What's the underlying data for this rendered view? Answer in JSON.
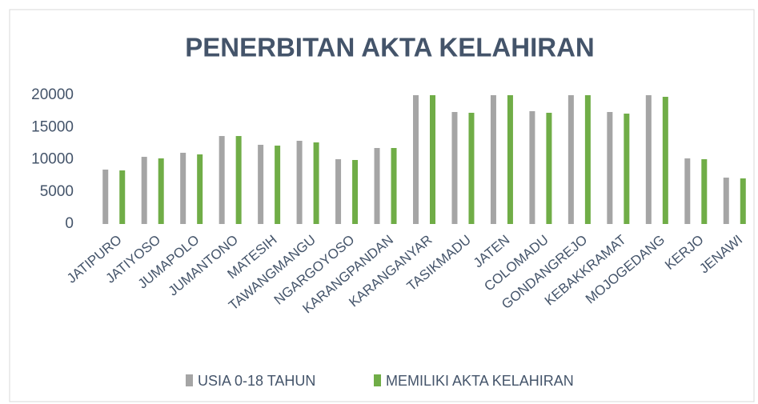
{
  "chart_data": {
    "type": "bar",
    "title": "PENERBITAN AKTA KELAHIRAN",
    "categories": [
      "JATIPURO",
      "JATIYOSO",
      "JUMAPOLO",
      "JUMANTONO",
      "MATESIH",
      "TAWANGMANGU",
      "NGARGOYOSO",
      "KARANGPANDAN",
      "KARANGANYAR",
      "TASIKMADU",
      "JATEN",
      "COLOMADU",
      "GONDANGREJO",
      "KEBAKKRAMAT",
      "MOJOGEDANG",
      "KERJO",
      "JENAWI"
    ],
    "series": [
      {
        "name": "USIA 0-18 TAHUN",
        "color": "#a5a5a5",
        "values": [
          8450,
          10430,
          11060,
          13660,
          12300,
          12920,
          10060,
          11800,
          20000,
          17390,
          20000,
          17520,
          20000,
          17390,
          20000,
          10190,
          7200
        ]
      },
      {
        "name": "MEMILIKI AKTA KELAHIRAN",
        "color": "#70ad47",
        "values": [
          8320,
          10190,
          10810,
          13660,
          12170,
          12670,
          9940,
          11800,
          20000,
          17270,
          20000,
          17270,
          20000,
          17140,
          19750,
          10060,
          7080
        ]
      }
    ],
    "ylim": [
      0,
      20000
    ],
    "yticks": [
      0,
      5000,
      10000,
      15000,
      20000
    ],
    "grid": false,
    "legend": "bottom"
  }
}
